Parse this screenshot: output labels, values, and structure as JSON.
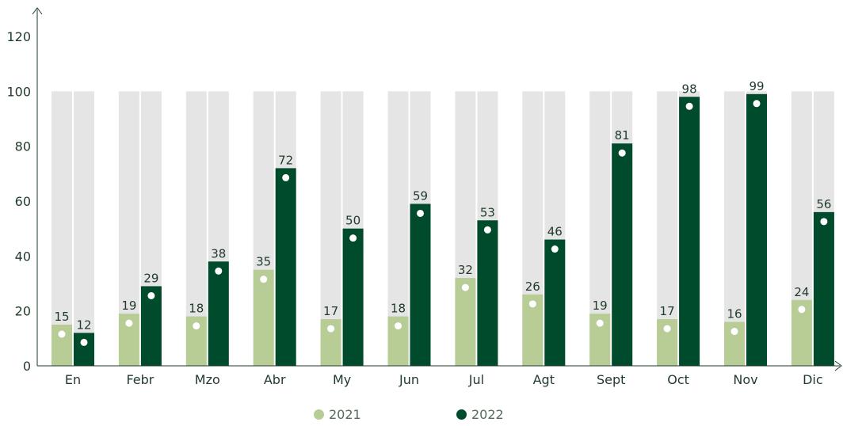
{
  "chart_data": {
    "type": "bar",
    "categories": [
      "En",
      "Febr",
      "Mzo",
      "Abr",
      "My",
      "Jun",
      "Jul",
      "Agt",
      "Sept",
      "Oct",
      "Nov",
      "Dic"
    ],
    "series": [
      {
        "name": "2021",
        "values": [
          15,
          19,
          18,
          35,
          17,
          18,
          32,
          26,
          19,
          17,
          16,
          24
        ]
      },
      {
        "name": "2022",
        "values": [
          12,
          29,
          38,
          72,
          50,
          59,
          53,
          46,
          81,
          98,
          99,
          56
        ]
      }
    ],
    "background_value": 100,
    "ylim": [
      0,
      120
    ],
    "yticks": [
      0,
      20,
      40,
      60,
      80,
      100,
      120
    ],
    "title": "",
    "xlabel": "",
    "ylabel": "",
    "grid": false,
    "legend_position": "bottom-center",
    "colors": {
      "series_2021": "#b8cc96",
      "series_2022": "#004b2c",
      "background_bar": "#e5e5e5",
      "marker": "#ffffff",
      "axis": "#1f3a2a"
    }
  }
}
